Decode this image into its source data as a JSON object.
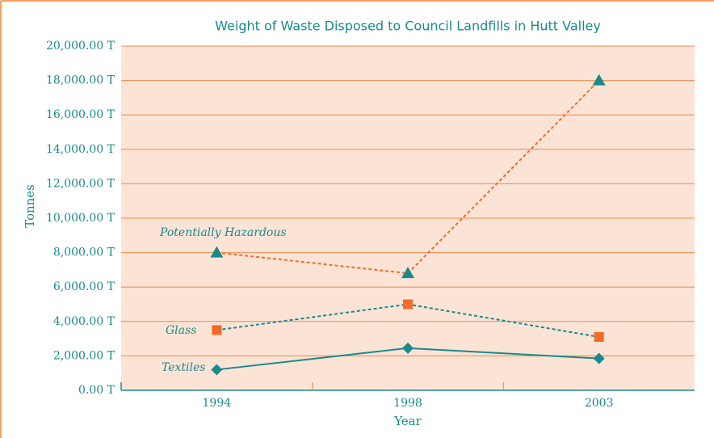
{
  "chart_data": {
    "type": "line",
    "title": "Weight of Waste Disposed to Council Landfills in Hutt Valley",
    "x_label": "Year",
    "y_label": "Tonnes",
    "categories": [
      "1994",
      "1998",
      "2003"
    ],
    "series": [
      {
        "name": "Potentially Hazardous",
        "color": "#f26b2a",
        "marker_color": "#1a8a8a",
        "marker": "triangle",
        "line_style": "dashed",
        "values": [
          8000,
          6800,
          18000
        ]
      },
      {
        "name": "Glass",
        "color": "#1a8a8a",
        "marker_color": "#f26b2a",
        "marker": "square",
        "line_style": "dashed",
        "values": [
          3500,
          5000,
          3100
        ]
      },
      {
        "name": "Textiles",
        "color": "#1a8a8a",
        "marker_color": "#1a8a8a",
        "marker": "diamond",
        "line_style": "solid",
        "values": [
          1200,
          2450,
          1850
        ]
      }
    ],
    "ylim": [
      0,
      20000
    ],
    "yticks": [
      {
        "value": 0,
        "label": "0.00 T"
      },
      {
        "value": 2000,
        "label": "2,000.00 T"
      },
      {
        "value": 4000,
        "label": "4,000.00 T"
      },
      {
        "value": 6000,
        "label": "6,000.00 T"
      },
      {
        "value": 8000,
        "label": "8,000.00 T"
      },
      {
        "value": 10000,
        "label": "10,000.00 T"
      },
      {
        "value": 12000,
        "label": "12,000.00 T"
      },
      {
        "value": 14000,
        "label": "14,000.00 T"
      },
      {
        "value": 16000,
        "label": "16,000.00 T"
      },
      {
        "value": 18000,
        "label": "18,000.00 T"
      },
      {
        "value": 20000,
        "label": "20,000.00 T"
      }
    ],
    "grid": true,
    "plot_background": "#fbe3d6",
    "grid_color": "#f08a4b"
  }
}
